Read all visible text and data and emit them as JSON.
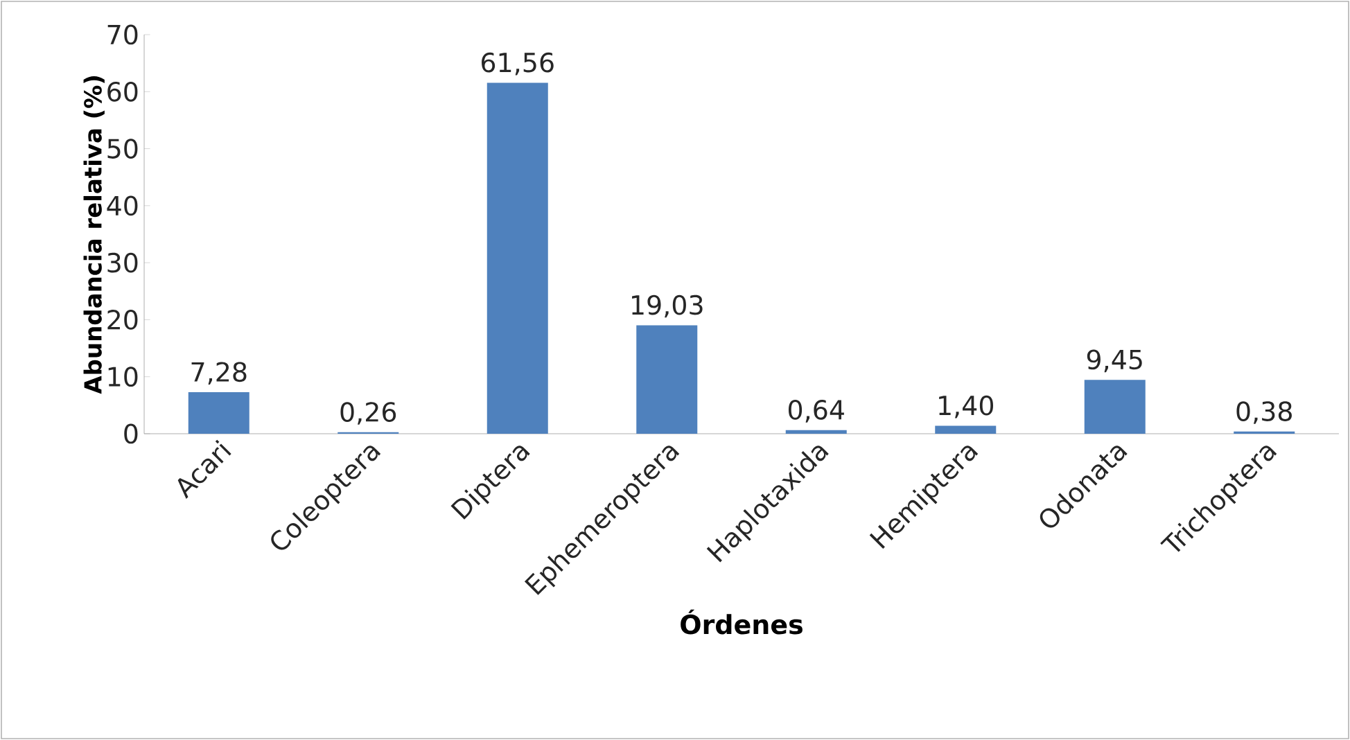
{
  "chart_data": {
    "type": "bar",
    "xlabel": "Órdenes",
    "ylabel": "Abundancia relativa (%)",
    "categories": [
      "Acari",
      "Coleoptera",
      "Diptera",
      "Ephemeroptera",
      "Haplotaxida",
      "Hemiptera",
      "Odonata",
      "Trichoptera"
    ],
    "values": [
      7.28,
      0.26,
      61.56,
      19.03,
      0.64,
      1.4,
      9.45,
      0.38
    ],
    "value_labels": [
      "7,28",
      "0,26",
      "61,56",
      "19,03",
      "0,64",
      "1,40",
      "9,45",
      "0,38"
    ],
    "color": "#4f81bd",
    "ylim": [
      0,
      70
    ],
    "yticks": [
      0,
      10,
      20,
      30,
      40,
      50,
      60,
      70
    ],
    "grid": false
  }
}
